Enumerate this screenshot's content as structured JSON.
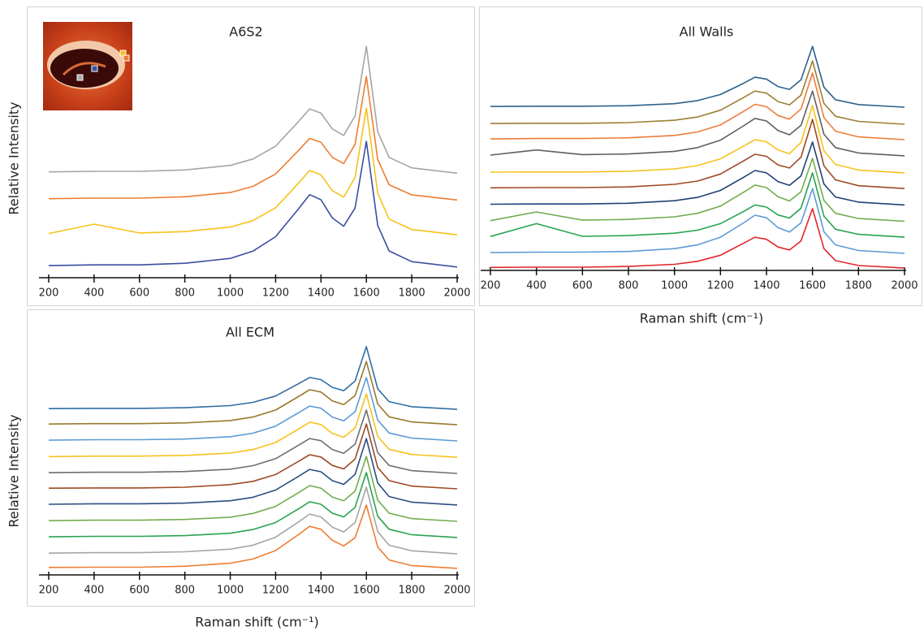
{
  "chart_data": [
    {
      "type": "line",
      "title": "A6S2",
      "ylabel": "Relative Intensity",
      "x": [
        200,
        400,
        600,
        800,
        1000,
        1100,
        1200,
        1300,
        1350,
        1400,
        1450,
        1500,
        1550,
        1600,
        1650,
        1700,
        1800,
        2000
      ],
      "xlim": [
        200,
        2000
      ],
      "ylim": [
        0,
        100
      ],
      "xticks": [
        200,
        400,
        600,
        800,
        1000,
        1200,
        1400,
        1600,
        1800,
        2000
      ],
      "series": [
        {
          "color": "#a5a5a5",
          "values": [
            39.5,
            39.7,
            39.7,
            40.2,
            41.9,
            44.3,
            49.1,
            58.2,
            63,
            61.4,
            55.5,
            53.1,
            60.4,
            86.3,
            54.5,
            44.9,
            41,
            39
          ]
        },
        {
          "color": "#ed7d31",
          "values": [
            29.5,
            29.7,
            29.7,
            30.2,
            31.8,
            34.1,
            38.7,
            47.4,
            52,
            50.5,
            44.9,
            42.6,
            49.8,
            75.1,
            44.1,
            34.7,
            30.9,
            29
          ]
        },
        {
          "color": "#f6c21c",
          "values": [
            16.5,
            20,
            16.7,
            17.2,
            18.9,
            21.3,
            26.1,
            35.2,
            40,
            38.4,
            32.5,
            30.1,
            37.4,
            63.3,
            31.5,
            21.9,
            18,
            16
          ]
        },
        {
          "color": "#3a4ea0",
          "values": [
            4.5,
            4.8,
            4.8,
            5.4,
            7.2,
            9.9,
            15.3,
            25.6,
            31,
            29.1,
            22.3,
            19.2,
            26,
            50.9,
            19.5,
            10,
            6,
            4
          ]
        }
      ]
    },
    {
      "type": "line",
      "title": "All Walls",
      "xlabel": "Raman shift (cm⁻¹)",
      "x": [
        200,
        400,
        600,
        800,
        1000,
        1100,
        1200,
        1300,
        1350,
        1400,
        1450,
        1500,
        1550,
        1600,
        1650,
        1700,
        1800,
        2000
      ],
      "xlim": [
        200,
        2000
      ],
      "ylim": [
        0,
        100
      ],
      "xticks": [
        200,
        400,
        600,
        800,
        1000,
        1200,
        1400,
        1600,
        1800,
        2000
      ],
      "series": [
        {
          "color": "#2e6189",
          "values": [
            70.1,
            70.2,
            70.2,
            70.4,
            71.3,
            72.6,
            75.2,
            80,
            82.6,
            81.8,
            78.6,
            77.4,
            81.5,
            95.8,
            78.3,
            73,
            70.9,
            69.8
          ]
        },
        {
          "color": "#9b7f33",
          "values": [
            62.8,
            62.9,
            62.9,
            63.2,
            64.2,
            65.6,
            68.5,
            73.9,
            76.7,
            75.8,
            72.2,
            70.8,
            74.9,
            89.6,
            71.4,
            65.9,
            63.7,
            62.5
          ]
        },
        {
          "color": "#ec7c3a",
          "values": [
            56.2,
            56.4,
            56.4,
            56.7,
            57.7,
            59.2,
            62.2,
            68,
            71,
            70,
            66.2,
            64.7,
            69,
            84.4,
            65.3,
            59.5,
            57.1,
            55.9
          ]
        },
        {
          "color": "#5f5f5f",
          "values": [
            49.3,
            51.5,
            49.5,
            49.8,
            50.9,
            52.5,
            55.7,
            61.8,
            65,
            63.9,
            59.8,
            58,
            62,
            76.7,
            58.2,
            52.5,
            50.2,
            49
          ]
        },
        {
          "color": "#f6c21c",
          "values": [
            42,
            42.1,
            42.1,
            42.4,
            43.4,
            44.8,
            47.7,
            53.1,
            55.9,
            55,
            51.5,
            49.9,
            54.7,
            70.5,
            51.1,
            45.3,
            42.9,
            41.7
          ]
        },
        {
          "color": "#9e4a24",
          "values": [
            35.3,
            35.4,
            35.4,
            35.7,
            36.8,
            38.2,
            41.2,
            46.8,
            49.7,
            48.8,
            45.1,
            43.8,
            48.4,
            64.6,
            44.7,
            38.7,
            36.2,
            35
          ]
        },
        {
          "color": "#223f75",
          "values": [
            28.3,
            28.4,
            28.4,
            28.7,
            29.8,
            31.2,
            34.2,
            39.8,
            42.7,
            41.7,
            38,
            36.4,
            40.4,
            54.9,
            36.9,
            31.4,
            29.2,
            28
          ]
        },
        {
          "color": "#72ac4d",
          "values": [
            21.3,
            25,
            21.5,
            21.8,
            22.9,
            24.4,
            27.5,
            33.4,
            36.5,
            35.4,
            31.5,
            29.7,
            33.6,
            47.9,
            29.9,
            24.4,
            22.2,
            21
          ]
        },
        {
          "color": "#27a34f",
          "values": [
            14.5,
            20,
            14.6,
            14.9,
            15.9,
            17.2,
            20,
            25.2,
            28,
            27.1,
            23.7,
            22.4,
            26.6,
            41.7,
            23.2,
            17.6,
            15.4,
            14.2
          ]
        },
        {
          "color": "#5b9bd5",
          "values": [
            7.6,
            7.8,
            7.8,
            8.1,
            9.3,
            10.9,
            14.2,
            20.3,
            23.6,
            22.5,
            18.3,
            16.4,
            20.3,
            35,
            16.5,
            10.9,
            8.5,
            7.3
          ]
        },
        {
          "color": "#e3262b",
          "values": [
            1.3,
            1.4,
            1.4,
            1.7,
            2.6,
            3.9,
            6.5,
            11.6,
            14.2,
            13.3,
            10,
            8.7,
            12.6,
            26.4,
            9.3,
            4.2,
            2.1,
            1
          ]
        }
      ]
    },
    {
      "type": "line",
      "title": "All ECM",
      "xlabel": "Raman shift (cm⁻¹)",
      "ylabel": "Relative Intensity",
      "x": [
        200,
        400,
        600,
        800,
        1000,
        1100,
        1200,
        1300,
        1350,
        1400,
        1450,
        1500,
        1550,
        1600,
        1650,
        1700,
        1800,
        2000
      ],
      "xlim": [
        200,
        2000
      ],
      "ylim": [
        0,
        100
      ],
      "xticks": [
        200,
        400,
        600,
        800,
        1000,
        1200,
        1400,
        1600,
        1800,
        2000
      ],
      "series": [
        {
          "color": "#2e6da4",
          "values": [
            71.1,
            71.2,
            71.2,
            71.5,
            72.4,
            73.8,
            76.5,
            81.7,
            84.4,
            83.5,
            80.2,
            78.8,
            82.9,
            97.6,
            79.6,
            74.1,
            71.9,
            70.8
          ]
        },
        {
          "color": "#98792d",
          "values": [
            64.5,
            64.7,
            64.7,
            65,
            66,
            67.5,
            70.5,
            76.2,
            79.2,
            78.2,
            74.4,
            72.8,
            76.7,
            91.3,
            73.1,
            67.6,
            65.4,
            64.2
          ]
        },
        {
          "color": "#5b9bd5",
          "values": [
            57.6,
            57.8,
            57.8,
            58.1,
            59.1,
            60.6,
            63.6,
            69.3,
            72.2,
            71.3,
            67.5,
            65.9,
            69.8,
            84.4,
            66.2,
            60.7,
            58.5,
            57.3
          ]
        },
        {
          "color": "#f6c21c",
          "values": [
            50.6,
            50.8,
            50.8,
            51.1,
            52.1,
            53.6,
            56.6,
            62.3,
            65.3,
            64.3,
            60.5,
            58.9,
            62.8,
            77.4,
            59.2,
            53.7,
            51.5,
            50.3
          ]
        },
        {
          "color": "#6e6e6e",
          "values": [
            43.7,
            43.9,
            43.9,
            44.2,
            45.2,
            46.7,
            49.7,
            55.4,
            58.3,
            57.4,
            53.6,
            52,
            55.9,
            70.5,
            52.3,
            46.8,
            44.6,
            43.4
          ]
        },
        {
          "color": "#9e4a24",
          "values": [
            37.1,
            37.2,
            37.2,
            37.5,
            38.6,
            40,
            42.9,
            48.5,
            51.4,
            50.4,
            46.8,
            45.3,
            49.5,
            64.6,
            45.9,
            40.3,
            38,
            36.8
          ]
        },
        {
          "color": "#2a4d80",
          "values": [
            30.2,
            30.4,
            30.4,
            30.7,
            31.7,
            33.2,
            36.3,
            42.1,
            45.1,
            44.1,
            40.3,
            38.7,
            43,
            58.3,
            39.3,
            33.5,
            31.1,
            29.9
          ]
        },
        {
          "color": "#72ac4d",
          "values": [
            23.2,
            23.4,
            23.4,
            23.7,
            24.7,
            26.3,
            29.3,
            35.1,
            38.2,
            37.1,
            33.3,
            31.7,
            35.8,
            50.7,
            32,
            26.4,
            24.1,
            22.9
          ]
        },
        {
          "color": "#27a34f",
          "values": [
            16.3,
            16.5,
            16.5,
            16.8,
            17.8,
            19.4,
            22.4,
            28.2,
            31.3,
            30.2,
            26.4,
            24.8,
            28.9,
            43.8,
            25.1,
            19.5,
            17.2,
            16
          ]
        },
        {
          "color": "#a5a5a5",
          "values": [
            9.3,
            9.5,
            9.5,
            9.9,
            11,
            12.7,
            16.1,
            22.6,
            26,
            24.8,
            20.4,
            18.4,
            22.4,
            37.5,
            18.5,
            12.7,
            10.3,
            9
          ]
        },
        {
          "color": "#ed7d31",
          "values": [
            3.2,
            3.3,
            3.3,
            3.7,
            5,
            6.8,
            10.4,
            17.2,
            20.8,
            19.5,
            14.8,
            12.4,
            15.9,
            29.9,
            11.9,
            6.4,
            4,
            2.8
          ]
        }
      ]
    }
  ]
}
